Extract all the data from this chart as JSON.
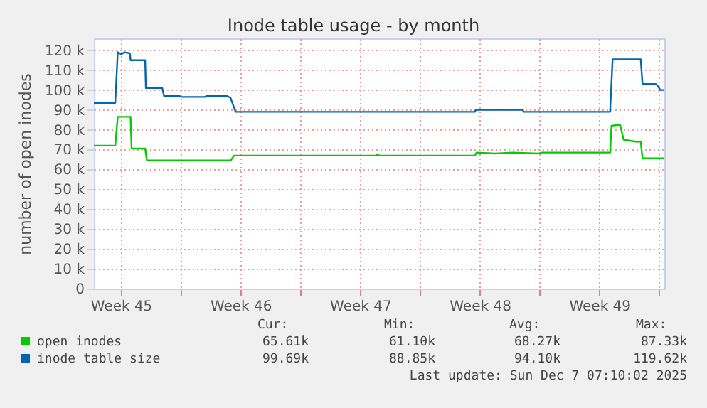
{
  "chart_data": {
    "type": "line",
    "title": "Inode table usage - by month",
    "ylabel": "number of open inodes",
    "xlim": [
      "2025-11-03T22:00",
      "2025-12-07T07:10"
    ],
    "xticks": [
      {
        "value": "2025-11-05T12:00",
        "label": "Week 45"
      },
      {
        "value": "2025-11-09T00:00",
        "label": null
      },
      {
        "value": "2025-11-12T12:00",
        "label": "Week 46"
      },
      {
        "value": "2025-11-16T00:00",
        "label": null
      },
      {
        "value": "2025-11-19T12:00",
        "label": "Week 47"
      },
      {
        "value": "2025-11-23T00:00",
        "label": null
      },
      {
        "value": "2025-11-26T12:00",
        "label": "Week 48"
      },
      {
        "value": "2025-11-30T00:00",
        "label": null
      },
      {
        "value": "2025-12-03T12:00",
        "label": "Week 49"
      },
      {
        "value": "2025-12-07T00:00",
        "label": null
      }
    ],
    "ylim": [
      0,
      126000
    ],
    "yticks": [
      0,
      {
        "value": 10000,
        "label": "10 k"
      },
      {
        "value": 20000,
        "label": "20 k"
      },
      {
        "value": 30000,
        "label": "30 k"
      },
      {
        "value": 40000,
        "label": "40 k"
      },
      {
        "value": 50000,
        "label": "50 k"
      },
      {
        "value": 60000,
        "label": "60 k"
      },
      {
        "value": 70000,
        "label": "70 k"
      },
      {
        "value": 80000,
        "label": "80 k"
      },
      {
        "value": 90000,
        "label": "90 k"
      },
      {
        "value": 100000,
        "label": "100 k"
      },
      {
        "value": 110000,
        "label": "110 k"
      },
      {
        "value": 120000,
        "label": "120 k"
      }
    ],
    "grid": true,
    "legend": "bottom left",
    "marker": "none",
    "line_style": "solid",
    "series": [
      {
        "name": "open inodes",
        "color": "#00cc00",
        "x": [
          "2025-11-03T22:00",
          "2025-11-05T04:00",
          "2025-11-05T07:30",
          "2025-11-06T01:30",
          "2025-11-06T03:00",
          "2025-11-06T22:00",
          "2025-11-07T00:30",
          "2025-11-11T22:00",
          "2025-11-12T03:00",
          "2025-11-20T10:00",
          "2025-11-20T12:30",
          "2025-11-20T15:00",
          "2025-11-26T05:00",
          "2025-11-26T07:30",
          "2025-11-27T10:00",
          "2025-11-28T10:00",
          "2025-11-29T22:00",
          "2025-11-30T03:00",
          "2025-12-04T03:00",
          "2025-12-04T05:00",
          "2025-12-04T17:00",
          "2025-12-04T22:00",
          "2025-12-05T15:00",
          "2025-12-05T22:00",
          "2025-12-06T00:30",
          "2025-12-07T07:10"
        ],
        "values": [
          72000,
          72000,
          86500,
          86500,
          70500,
          70500,
          64500,
          64500,
          67000,
          67000,
          67500,
          67000,
          67000,
          68500,
          68000,
          68500,
          68000,
          68500,
          68500,
          82000,
          82500,
          75000,
          74000,
          74000,
          65600,
          65600
        ]
      },
      {
        "name": "inode table size",
        "color": "#0066b3",
        "x": [
          "2025-11-03T22:00",
          "2025-11-05T04:00",
          "2025-11-05T07:30",
          "2025-11-05T12:30",
          "2025-11-05T17:00",
          "2025-11-06T00:30",
          "2025-11-06T01:30",
          "2025-11-06T22:00",
          "2025-11-06T23:00",
          "2025-11-07T22:00",
          "2025-11-08T00:30",
          "2025-11-08T22:00",
          "2025-11-09T00:30",
          "2025-11-10T10:00",
          "2025-11-10T12:30",
          "2025-11-11T17:00",
          "2025-11-11T22:00",
          "2025-11-12T05:00",
          "2025-11-26T05:00",
          "2025-11-26T06:30",
          "2025-11-29T00:30",
          "2025-11-29T01:30",
          "2025-12-04T03:00",
          "2025-12-04T06:30",
          "2025-12-05T22:00",
          "2025-12-06T00:30",
          "2025-12-06T19:30",
          "2025-12-06T22:00",
          "2025-12-07T01:30",
          "2025-12-07T07:10"
        ],
        "values": [
          93500,
          93500,
          119000,
          118000,
          119000,
          118500,
          115000,
          115000,
          101000,
          101000,
          97000,
          97000,
          96500,
          96500,
          97000,
          97000,
          96000,
          89000,
          89000,
          90000,
          90000,
          89000,
          89000,
          115500,
          115500,
          103000,
          103000,
          102000,
          100000,
          100000
        ]
      }
    ],
    "annotations": [
      "Cur:",
      "Min:",
      "Avg:",
      "Max:",
      "65.61k",
      "61.10k",
      "68.27k",
      "87.33k",
      "99.69k",
      "88.85k",
      "94.10k",
      "119.62k",
      "Last update: Sun Dec  7 07:10:02 2025"
    ]
  }
}
